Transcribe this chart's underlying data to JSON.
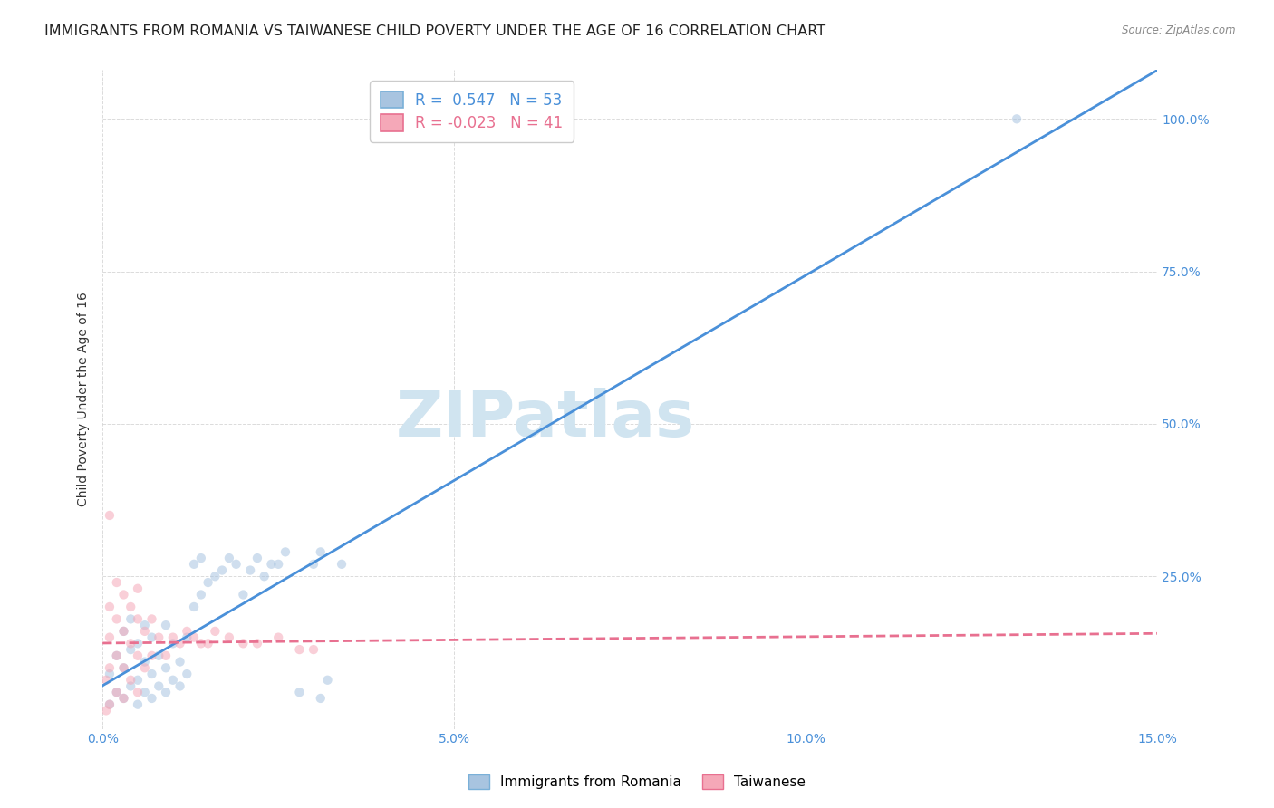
{
  "title": "IMMIGRANTS FROM ROMANIA VS TAIWANESE CHILD POVERTY UNDER THE AGE OF 16 CORRELATION CHART",
  "source": "Source: ZipAtlas.com",
  "ylabel": "Child Poverty Under the Age of 16",
  "xlim": [
    0.0,
    0.15
  ],
  "ylim": [
    0.0,
    1.08
  ],
  "xticks": [
    0.0,
    0.05,
    0.1,
    0.15
  ],
  "xtick_labels": [
    "0.0%",
    "5.0%",
    "10.0%",
    "15.0%"
  ],
  "yticks": [
    0.25,
    0.5,
    0.75,
    1.0
  ],
  "ytick_labels": [
    "25.0%",
    "50.0%",
    "75.0%",
    "100.0%"
  ],
  "legend1_label": "R =  0.547   N = 53",
  "legend2_label": "R = -0.023   N = 41",
  "blue_scatter_color": "#a8c4e0",
  "pink_scatter_color": "#f5a8b8",
  "blue_line_color": "#4a90d9",
  "pink_line_color": "#e87090",
  "watermark_text": "ZIPatlas",
  "watermark_color": "#d0e4f0",
  "bottom_legend": [
    "Immigrants from Romania",
    "Taiwanese"
  ],
  "grid_color": "#cccccc",
  "bg_color": "#ffffff",
  "title_fontsize": 11.5,
  "axis_label_fontsize": 10,
  "tick_fontsize": 10,
  "scatter_size": 55,
  "scatter_alpha": 0.55,
  "line_width": 2.0,
  "blue_x": [
    0.001,
    0.001,
    0.002,
    0.002,
    0.003,
    0.003,
    0.003,
    0.004,
    0.004,
    0.004,
    0.005,
    0.005,
    0.005,
    0.006,
    0.006,
    0.006,
    0.007,
    0.007,
    0.007,
    0.008,
    0.008,
    0.009,
    0.009,
    0.009,
    0.01,
    0.01,
    0.011,
    0.011,
    0.012,
    0.012,
    0.013,
    0.013,
    0.014,
    0.014,
    0.015,
    0.016,
    0.017,
    0.018,
    0.019,
    0.02,
    0.021,
    0.022,
    0.023,
    0.024,
    0.025,
    0.026,
    0.028,
    0.03,
    0.031,
    0.032,
    0.034,
    0.13,
    0.031
  ],
  "blue_y": [
    0.04,
    0.09,
    0.06,
    0.12,
    0.05,
    0.1,
    0.16,
    0.07,
    0.13,
    0.18,
    0.04,
    0.08,
    0.14,
    0.06,
    0.11,
    0.17,
    0.05,
    0.09,
    0.15,
    0.07,
    0.12,
    0.06,
    0.1,
    0.17,
    0.08,
    0.14,
    0.07,
    0.11,
    0.09,
    0.15,
    0.2,
    0.27,
    0.22,
    0.28,
    0.24,
    0.25,
    0.26,
    0.28,
    0.27,
    0.22,
    0.26,
    0.28,
    0.25,
    0.27,
    0.27,
    0.29,
    0.06,
    0.27,
    0.29,
    0.08,
    0.27,
    1.0,
    0.05
  ],
  "pink_x": [
    0.0005,
    0.0005,
    0.001,
    0.001,
    0.001,
    0.001,
    0.002,
    0.002,
    0.002,
    0.002,
    0.003,
    0.003,
    0.003,
    0.003,
    0.004,
    0.004,
    0.004,
    0.005,
    0.005,
    0.005,
    0.005,
    0.006,
    0.006,
    0.007,
    0.007,
    0.008,
    0.009,
    0.01,
    0.011,
    0.012,
    0.013,
    0.014,
    0.015,
    0.016,
    0.018,
    0.02,
    0.022,
    0.025,
    0.028,
    0.03,
    0.001
  ],
  "pink_y": [
    0.03,
    0.08,
    0.04,
    0.1,
    0.15,
    0.2,
    0.06,
    0.12,
    0.18,
    0.24,
    0.05,
    0.1,
    0.16,
    0.22,
    0.08,
    0.14,
    0.2,
    0.06,
    0.12,
    0.18,
    0.23,
    0.1,
    0.16,
    0.12,
    0.18,
    0.15,
    0.12,
    0.15,
    0.14,
    0.16,
    0.15,
    0.14,
    0.14,
    0.16,
    0.15,
    0.14,
    0.14,
    0.15,
    0.13,
    0.13,
    0.35
  ]
}
